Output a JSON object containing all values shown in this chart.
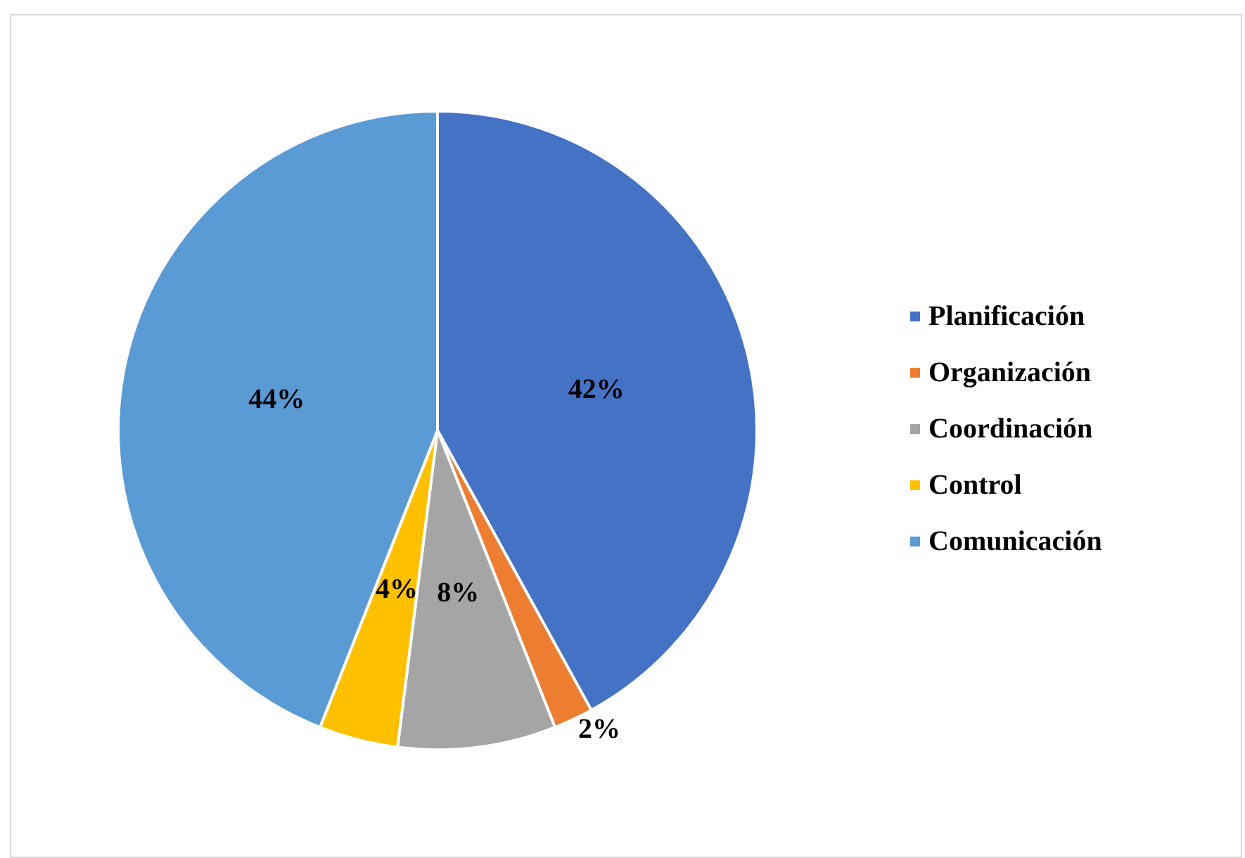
{
  "chart_data": {
    "type": "pie",
    "categories": [
      "Planificación",
      "Organización",
      "Coordinación",
      "Control",
      "Comunicación"
    ],
    "values": [
      42,
      2,
      8,
      4,
      44
    ],
    "colors": [
      "#4472c4",
      "#ed7d31",
      "#a5a5a5",
      "#ffc000",
      "#5b9bd5"
    ],
    "value_labels": [
      "42%",
      "2%",
      "8%",
      "4%",
      "44%"
    ],
    "legend": "right"
  }
}
